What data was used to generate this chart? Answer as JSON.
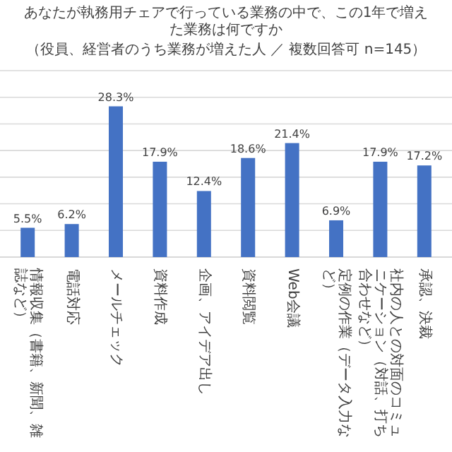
{
  "chart_data": {
    "type": "bar",
    "title": "あなたが執務用チェアで行っている業務の中で、この1年で増えた業務は何ですか",
    "subtitle": "（役員、経営者のうち業務が増えた人 ／ 複数回答可 n=145）",
    "categories": [
      "情報収集（書籍、新聞、雑誌など）",
      "電話対応",
      "メールチェック",
      "資料作成",
      "企画、アイデア出し",
      "資料閲覧",
      "Web会議",
      "定例の作業（データ入力など）",
      "社内の人との対面のコミュニケーション（対話、打ち合わせなど）",
      "承認、決裁"
    ],
    "values": [
      5.5,
      6.2,
      28.3,
      17.9,
      12.4,
      18.6,
      21.4,
      6.9,
      17.9,
      17.2
    ],
    "value_labels": [
      "5.5%",
      "6.2%",
      "28.3%",
      "17.9%",
      "12.4%",
      "18.6%",
      "21.4%",
      "6.9%",
      "17.9%",
      "17.2%"
    ],
    "color": "#4472c4",
    "ylim": [
      0,
      35
    ],
    "yticks": [
      {
        "value": 0,
        "label": null
      },
      {
        "value": 5,
        "label": null
      },
      {
        "value": 10,
        "label": null
      },
      {
        "value": 15,
        "label": null
      },
      {
        "value": 20,
        "label": null
      },
      {
        "value": 25,
        "label": null
      },
      {
        "value": 30,
        "label": null
      },
      {
        "value": 35,
        "label": null
      }
    ],
    "grid": "y",
    "tick_labels": "x"
  }
}
